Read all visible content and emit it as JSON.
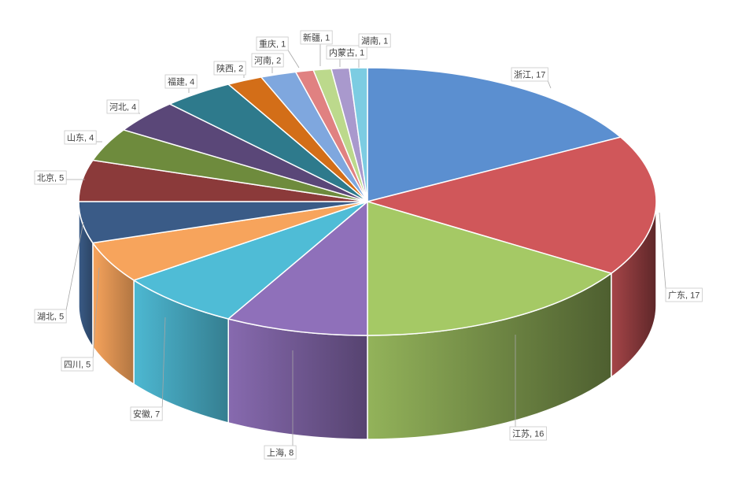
{
  "chart_data": {
    "type": "pie",
    "style": "3d-pie",
    "title": "",
    "start_angle_deg": 0,
    "direction": "clockwise",
    "slices": [
      {
        "label": "浙江",
        "value": 17,
        "color": "#5B8FD0"
      },
      {
        "label": "广东",
        "value": 17,
        "color": "#D0575A"
      },
      {
        "label": "江苏",
        "value": 16,
        "color": "#A5C965"
      },
      {
        "label": "上海",
        "value": 8,
        "color": "#8F70BA"
      },
      {
        "label": "安徽",
        "value": 7,
        "color": "#4FBCD6"
      },
      {
        "label": "四川",
        "value": 5,
        "color": "#F7A45C"
      },
      {
        "label": "湖北",
        "value": 5,
        "color": "#3A5B87"
      },
      {
        "label": "北京",
        "value": 5,
        "color": "#8B3A3A"
      },
      {
        "label": "山东",
        "value": 4,
        "color": "#6E8B3D"
      },
      {
        "label": "河北",
        "value": 4,
        "color": "#5A4778"
      },
      {
        "label": "福建",
        "value": 4,
        "color": "#2E7A8C"
      },
      {
        "label": "陕西",
        "value": 2,
        "color": "#D36E18"
      },
      {
        "label": "河南",
        "value": 2,
        "color": "#7FA7DE"
      },
      {
        "label": "重庆",
        "value": 1,
        "color": "#E08181"
      },
      {
        "label": "新疆",
        "value": 1,
        "color": "#BCD98C"
      },
      {
        "label": "内蒙古",
        "value": 1,
        "color": "#A999CD"
      },
      {
        "label": "湖南",
        "value": 1,
        "color": "#7CCCE2"
      }
    ],
    "data_labels": [
      "浙江, 17",
      "广东, 17",
      "江苏, 16",
      "上海, 8",
      "安徽, 7",
      "四川, 5",
      "湖北, 5",
      "北京, 5",
      "山东, 4",
      "河北, 4",
      "福建, 4",
      "陕西, 2",
      "河南, 2",
      "重庆, 1",
      "新疆, 1",
      "内蒙古, 1",
      "湖南, 1"
    ]
  }
}
